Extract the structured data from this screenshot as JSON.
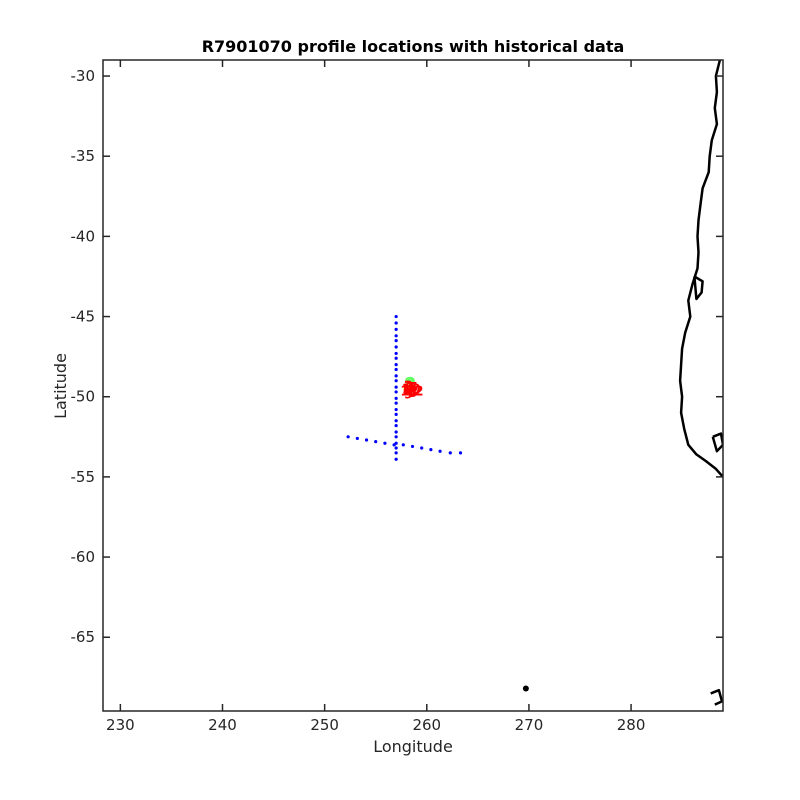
{
  "chart_data": {
    "type": "scatter",
    "title": "R7901070 profile locations with historical data",
    "xlabel": "Longitude",
    "ylabel": "Latitude",
    "xlim": [
      228.3,
      289.0
    ],
    "ylim": [
      -69.6,
      -29.0
    ],
    "xticks": [
      230,
      240,
      250,
      260,
      270,
      280
    ],
    "yticks": [
      -30,
      -35,
      -40,
      -45,
      -50,
      -55,
      -60,
      -65
    ],
    "grid": false,
    "legend": "none",
    "colors": {
      "historical": "#0000ff",
      "coast": "#000000",
      "profile_labels": "#ff0000",
      "shading_green": "#66ff66",
      "shading_yellow": "#ffff00"
    },
    "series": [
      {
        "points": [
          [
            257.0,
            -45.0
          ],
          [
            257.0,
            -45.4
          ],
          [
            257.0,
            -45.8
          ],
          [
            257.0,
            -46.2
          ],
          [
            257.0,
            -46.5
          ],
          [
            257.0,
            -46.9
          ],
          [
            257.0,
            -47.3
          ],
          [
            257.0,
            -47.6
          ],
          [
            257.0,
            -48.0
          ],
          [
            257.0,
            -48.3
          ],
          [
            257.0,
            -48.7
          ],
          [
            257.0,
            -49.0
          ],
          [
            257.0,
            -49.4
          ],
          [
            257.0,
            -49.7
          ],
          [
            257.0,
            -50.1
          ],
          [
            257.0,
            -50.4
          ],
          [
            257.0,
            -50.8
          ],
          [
            257.0,
            -51.1
          ],
          [
            257.0,
            -51.5
          ],
          [
            257.0,
            -51.8
          ],
          [
            257.0,
            -52.2
          ],
          [
            257.0,
            -52.5
          ],
          [
            257.0,
            -52.9
          ],
          [
            257.0,
            -53.2
          ],
          [
            257.0,
            -53.5
          ],
          [
            257.0,
            -53.9
          ],
          [
            252.3,
            -52.5
          ],
          [
            253.2,
            -52.6
          ],
          [
            254.1,
            -52.7
          ],
          [
            255.0,
            -52.8
          ],
          [
            255.9,
            -52.9
          ],
          [
            256.8,
            -53.0
          ],
          [
            257.7,
            -53.0
          ],
          [
            258.6,
            -53.1
          ],
          [
            259.5,
            -53.2
          ],
          [
            260.4,
            -53.3
          ],
          [
            261.3,
            -53.4
          ],
          [
            262.3,
            -53.5
          ],
          [
            263.3,
            -53.5
          ]
        ]
      },
      {
        "labels": [
          "1",
          "2",
          "3",
          "4",
          "5",
          "6",
          "7",
          "8",
          "9",
          "10",
          "11",
          "12"
        ],
        "points": [
          [
            258.0,
            -49.5
          ],
          [
            258.2,
            -49.3
          ],
          [
            258.5,
            -49.6
          ],
          [
            258.3,
            -49.7
          ],
          [
            258.7,
            -49.4
          ],
          [
            258.1,
            -49.6
          ],
          [
            258.4,
            -49.4
          ],
          [
            258.6,
            -49.7
          ],
          [
            258.2,
            -49.8
          ],
          [
            258.5,
            -49.5
          ],
          [
            258.3,
            -49.6
          ],
          [
            258.8,
            -49.6
          ]
        ]
      }
    ],
    "coastline": [
      [
        [
          288.7,
          -29.0
        ],
        [
          288.3,
          -30.0
        ],
        [
          288.4,
          -31.0
        ],
        [
          288.2,
          -32.0
        ],
        [
          288.4,
          -33.0
        ],
        [
          287.9,
          -34.0
        ],
        [
          287.7,
          -35.0
        ],
        [
          287.6,
          -36.0
        ],
        [
          287.0,
          -37.0
        ],
        [
          286.8,
          -38.0
        ],
        [
          286.6,
          -39.0
        ],
        [
          286.5,
          -40.0
        ],
        [
          286.6,
          -41.0
        ],
        [
          286.5,
          -42.0
        ],
        [
          286.0,
          -43.0
        ],
        [
          285.6,
          -44.0
        ],
        [
          285.8,
          -45.0
        ],
        [
          285.3,
          -46.0
        ],
        [
          285.0,
          -47.0
        ],
        [
          284.9,
          -48.0
        ],
        [
          284.8,
          -49.0
        ],
        [
          285.0,
          -50.0
        ],
        [
          284.9,
          -51.0
        ],
        [
          285.2,
          -52.0
        ],
        [
          285.6,
          -53.0
        ],
        [
          286.4,
          -53.6
        ],
        [
          287.3,
          -54.0
        ],
        [
          288.3,
          -54.5
        ],
        [
          289.0,
          -55.0
        ]
      ],
      [
        [
          288.0,
          -52.5
        ],
        [
          288.8,
          -52.3
        ],
        [
          289.0,
          -53.0
        ],
        [
          288.4,
          -53.4
        ],
        [
          288.0,
          -52.5
        ]
      ],
      [
        [
          286.2,
          -42.5
        ],
        [
          287.0,
          -42.8
        ],
        [
          286.9,
          -43.5
        ],
        [
          286.4,
          -43.9
        ],
        [
          286.2,
          -42.5
        ]
      ],
      [
        [
          287.8,
          -68.5
        ],
        [
          288.6,
          -68.3
        ],
        [
          288.9,
          -69.0
        ],
        [
          288.2,
          -69.2
        ]
      ]
    ],
    "island": [
      269.7,
      -68.2
    ]
  }
}
